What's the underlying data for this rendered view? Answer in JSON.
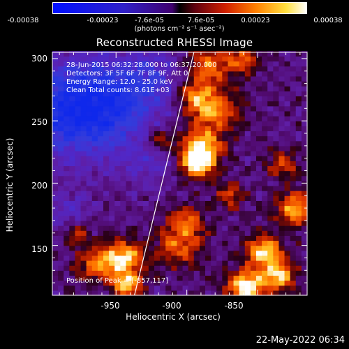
{
  "colorbar": {
    "tick_labels": [
      "-0.00038",
      "-0.00023",
      "-7.6e-05",
      "7.6e-05",
      "0.00023",
      "0.00038"
    ],
    "units": "(photons cm⁻² s⁻¹ asec⁻²)"
  },
  "info": {
    "time_range": "28-Jun-2015 06:32:28.000 to 06:37:20.000",
    "detectors": "Detectors: 3F 5F 6F 7F 8F 9F, Att 0",
    "energy": "Energy Range: 12.0 - 25.0 keV",
    "clean": "Clean     Total counts: 8.61E+03",
    "peak": "Position of Peak = [-857,117]"
  },
  "footer": {
    "timestamp": "22-May-2022 06:34"
  },
  "chart_data": {
    "type": "heatmap",
    "title": "Reconstructed RHESSI Image",
    "xlabel": "Heliocentric X (arcsec)",
    "ylabel": "Heliocentric Y (arcsec)",
    "xlim": [
      -995,
      -815
    ],
    "ylim": [
      110,
      305
    ],
    "x_ticks": [
      -950,
      -900,
      -850
    ],
    "y_ticks": [
      150,
      200,
      250,
      300
    ],
    "colormap": "blue-purple-red-yellow-white",
    "value_range": [
      -0.00038,
      0.00038
    ],
    "peak_position": [
      -857,
      117
    ],
    "limb_line": [
      [
        -937,
        110
      ],
      [
        -895,
        305
      ]
    ],
    "grid_step_arcsec": 4,
    "background_color": "#5a1ea0",
    "blobs": [
      {
        "x": -985,
        "y": 258,
        "sigma": 28,
        "amp": -0.75
      },
      {
        "x": -955,
        "y": 265,
        "sigma": 24,
        "amp": -0.55
      },
      {
        "x": -925,
        "y": 285,
        "sigma": 18,
        "amp": -0.35
      },
      {
        "x": -930,
        "y": 215,
        "sigma": 14,
        "amp": -0.25
      },
      {
        "x": -985,
        "y": 175,
        "sigma": 14,
        "amp": -0.3
      },
      {
        "x": -965,
        "y": 135,
        "sigma": 10,
        "amp": 0.55
      },
      {
        "x": -945,
        "y": 140,
        "sigma": 10,
        "amp": 0.9
      },
      {
        "x": -942,
        "y": 118,
        "sigma": 7,
        "amp": 0.9
      },
      {
        "x": -978,
        "y": 160,
        "sigma": 7,
        "amp": 0.5
      },
      {
        "x": -905,
        "y": 150,
        "sigma": 12,
        "amp": 0.55
      },
      {
        "x": -900,
        "y": 170,
        "sigma": 9,
        "amp": 0.5
      },
      {
        "x": -890,
        "y": 228,
        "sigma": 10,
        "amp": 0.95
      },
      {
        "x": -892,
        "y": 215,
        "sigma": 8,
        "amp": 0.8
      },
      {
        "x": -880,
        "y": 258,
        "sigma": 12,
        "amp": 0.7
      },
      {
        "x": -895,
        "y": 270,
        "sigma": 9,
        "amp": 0.6
      },
      {
        "x": -885,
        "y": 295,
        "sigma": 11,
        "amp": 0.65
      },
      {
        "x": -858,
        "y": 117,
        "sigma": 9,
        "amp": 1.1
      },
      {
        "x": -845,
        "y": 145,
        "sigma": 9,
        "amp": 0.9
      },
      {
        "x": -835,
        "y": 125,
        "sigma": 8,
        "amp": 0.85
      },
      {
        "x": -823,
        "y": 180,
        "sigma": 10,
        "amp": 0.75
      },
      {
        "x": -832,
        "y": 215,
        "sigma": 8,
        "amp": 0.5
      },
      {
        "x": -870,
        "y": 190,
        "sigma": 7,
        "amp": 0.5
      },
      {
        "x": -920,
        "y": 235,
        "sigma": 7,
        "amp": 0.45
      },
      {
        "x": -860,
        "y": 300,
        "sigma": 9,
        "amp": 0.5
      }
    ]
  }
}
